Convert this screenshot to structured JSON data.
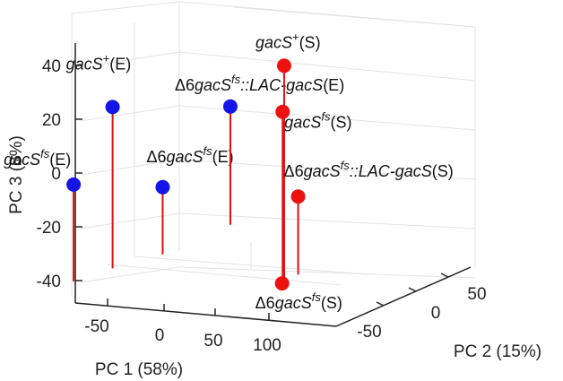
{
  "chart_data": {
    "type": "scatter3d",
    "xlabel": "PC 1 (58%)",
    "ylabel": "PC 2 (15%)",
    "zlabel": "PC 3 (8%)",
    "x_ticks": [
      "-50",
      "0",
      "50",
      "100"
    ],
    "y_ticks": [
      "-50",
      "0",
      "50"
    ],
    "z_ticks": [
      "-40",
      "-20",
      "0",
      "20",
      "40"
    ],
    "series": [
      {
        "name": "E",
        "color": "#1515e8",
        "points": [
          {
            "label_main": "gacS",
            "label_sup": "+",
            "label_suffix": "(E)",
            "italic_prefix": "",
            "x": -40,
            "y": -20,
            "z": 26,
            "stem_base": -34
          },
          {
            "label_main": "gacS",
            "label_sup": "fs",
            "label_suffix": "(E)",
            "italic_prefix": "",
            "x": -60,
            "y": -45,
            "z": 0,
            "stem_base": -36
          },
          {
            "label_main": "Δ6gacS",
            "label_sup": "fs",
            "label_suffix": "(E)",
            "italic_prefix": "Δ6",
            "x": 5,
            "y": -15,
            "z": -3,
            "stem_base": -28
          },
          {
            "label_main": "Δ6gacS",
            "label_sup": "fs",
            "label_suffix": "::LAC-gacS(E)",
            "italic_prefix": "Δ6",
            "x": 35,
            "y": 35,
            "z": 21,
            "stem_base": -23
          }
        ]
      },
      {
        "name": "S",
        "color": "#ee1111",
        "points": [
          {
            "label_main": "gacS",
            "label_sup": "+",
            "label_suffix": "(S)",
            "italic_prefix": "",
            "x": 105,
            "y": 10,
            "z": 42,
            "stem_base": -39
          },
          {
            "label_main": "gacS",
            "label_sup": "fs",
            "label_suffix": "(S)",
            "italic_prefix": "",
            "x": 100,
            "y": 15,
            "z": 24,
            "stem_base": -39
          },
          {
            "label_main": "Δ6gacS",
            "label_sup": "fs",
            "label_suffix": "::LAC-gacS(S)",
            "italic_prefix": "Δ6",
            "x": 115,
            "y": 15,
            "z": -7,
            "stem_base": -36
          },
          {
            "label_main": "Δ6gacS",
            "label_sup": "fs",
            "label_suffix": "(S)",
            "italic_prefix": "Δ6",
            "x": 103,
            "y": 10,
            "z": -39,
            "stem_base": -39
          }
        ]
      }
    ],
    "stem_color": "#e01010"
  }
}
